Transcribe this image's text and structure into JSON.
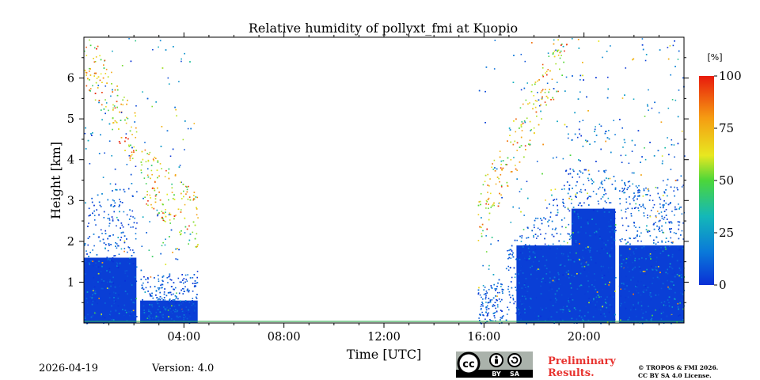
{
  "chart_data": {
    "type": "heatmap",
    "title": "Relative humidity of pollyxt_fmi at Kuopio",
    "xlabel": "Time [UTC]",
    "ylabel": "Height [km]",
    "x_unit": "hours UTC",
    "xlim": [
      0,
      24
    ],
    "ylim": [
      0,
      7
    ],
    "x_ticks": [
      {
        "value": 4,
        "label": "04:00"
      },
      {
        "value": 8,
        "label": "08:00"
      },
      {
        "value": 12,
        "label": "12:00"
      },
      {
        "value": 16,
        "label": "16:00"
      },
      {
        "value": 20,
        "label": "20:00"
      }
    ],
    "y_ticks": [
      {
        "value": 1,
        "label": "1"
      },
      {
        "value": 2,
        "label": "2"
      },
      {
        "value": 3,
        "label": "3"
      },
      {
        "value": 4,
        "label": "4"
      },
      {
        "value": 5,
        "label": "5"
      },
      {
        "value": 6,
        "label": "6"
      }
    ],
    "colorbar": {
      "unit": "[%]",
      "range": [
        0,
        100
      ],
      "ticks": [
        {
          "value": 0,
          "label": "0"
        },
        {
          "value": 25,
          "label": "25"
        },
        {
          "value": 50,
          "label": "50"
        },
        {
          "value": 75,
          "label": "75"
        },
        {
          "value": 100,
          "label": "100"
        }
      ],
      "colormap": [
        "#0a2fd6",
        "#0a7ad9",
        "#14b8b8",
        "#4cd63a",
        "#e8e820",
        "#f59c12",
        "#e81a0c"
      ]
    },
    "data_periods": [
      {
        "start": 0.0,
        "end": 2.1,
        "note": "dense low RH near surface up to ~2.5 km, moist layer 5-7 km"
      },
      {
        "start": 2.25,
        "end": 4.55,
        "note": "sparse, moist layer descending 3.5-2.5 km"
      },
      {
        "start": 15.75,
        "end": 16.75,
        "note": "sparse returns"
      },
      {
        "start": 16.85,
        "end": 19.2,
        "note": "moist layer rising from 3 km to 7 km"
      },
      {
        "start": 19.2,
        "end": 21.25,
        "note": "dense low RH up to ~4 km"
      },
      {
        "start": 21.4,
        "end": 24.0,
        "note": "dense low RH up to ~3.5 km"
      }
    ],
    "gaps": [
      {
        "start": 2.1,
        "end": 2.25
      },
      {
        "start": 4.55,
        "end": 15.75
      },
      {
        "start": 16.75,
        "end": 16.85
      },
      {
        "start": 21.25,
        "end": 21.4
      }
    ]
  },
  "footer": {
    "date": "2026-04-19",
    "version": "Version: 4.0",
    "license_badge": {
      "cc": "cc",
      "by": "BY",
      "sa": "SA"
    },
    "preliminary_line1": "Preliminary",
    "preliminary_line2": "Results.",
    "copyright_line1": "© TROPOS & FMI 2026.",
    "copyright_line2": "CC BY SA 4.0 License."
  }
}
